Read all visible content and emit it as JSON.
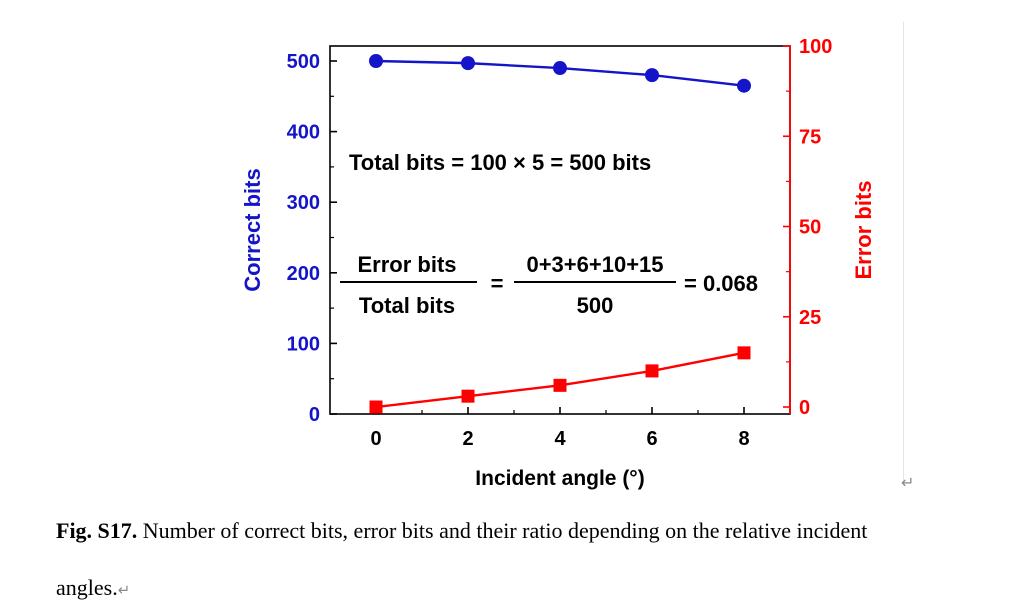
{
  "chart_data": {
    "type": "line",
    "x": [
      0,
      2,
      4,
      6,
      8
    ],
    "xlabel": "Incident angle (°)",
    "xlim": [
      -1,
      9
    ],
    "xticks": [
      "0",
      "2",
      "4",
      "6",
      "8"
    ],
    "series": [
      {
        "name": "Correct bits",
        "axis": "left",
        "marker": "circle",
        "color": "#1414c8",
        "values": [
          500,
          497,
          490,
          480,
          465
        ]
      },
      {
        "name": "Error bits",
        "axis": "right",
        "marker": "square",
        "color": "#ff0000",
        "values": [
          0,
          3,
          6,
          10,
          15
        ]
      }
    ],
    "ylabel_left": "Correct bits",
    "ylim_left": [
      0,
      520
    ],
    "yticks_left": [
      "0",
      "100",
      "200",
      "300",
      "400",
      "500"
    ],
    "ylabel_right": "Error bits",
    "ylim_right": [
      0,
      100
    ],
    "yticks_right": [
      "0",
      "25",
      "50",
      "75",
      "100"
    ],
    "annotations": {
      "total": "Total bits = 100 × 5 = 500 bits",
      "frac1_num": "Error bits",
      "frac1_den": "Total bits",
      "equals": "=",
      "frac2_num": "0+3+6+10+15",
      "frac2_den": "500",
      "result": "= 0.068"
    }
  },
  "caption": {
    "label": "Fig. S17.",
    "text_line1": " Number of correct bits, error bits and their ratio depending on the relative incident",
    "text_line2": "angles.",
    "paragraph_mark": "↵"
  }
}
